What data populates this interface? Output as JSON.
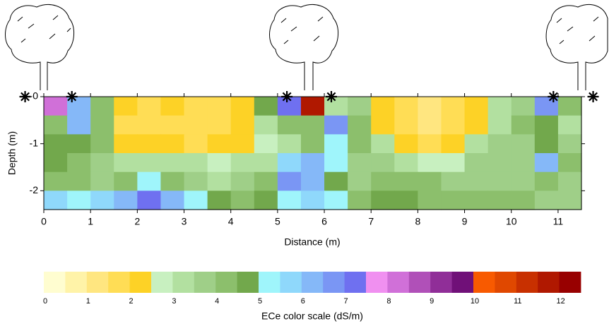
{
  "chart_data": {
    "type": "contour",
    "xlabel": "Distance (m)",
    "ylabel": "Depth (m)",
    "xlim": [
      0,
      11.5
    ],
    "ylim": [
      -2.4,
      0
    ],
    "xticks": [
      0,
      1,
      2,
      3,
      4,
      5,
      6,
      7,
      8,
      9,
      10,
      11
    ],
    "yticks": [
      {
        "value": 0,
        "label": "-0"
      },
      {
        "value": -1,
        "label": "-1"
      },
      {
        "value": -2,
        "label": "-2"
      }
    ],
    "x": [
      0.25,
      0.75,
      1.25,
      1.75,
      2.25,
      2.75,
      3.25,
      3.75,
      4.25,
      4.75,
      5.25,
      5.75,
      6.25,
      6.75,
      7.25,
      7.75,
      8.25,
      8.75,
      9.25,
      9.75,
      10.25,
      10.75,
      11.25
    ],
    "y": [
      -0.2,
      -0.6,
      -1.0,
      -1.4,
      -1.8,
      -2.2
    ],
    "z": [
      [
        8,
        6,
        4,
        2,
        1.5,
        2,
        1.5,
        1.5,
        2,
        4.5,
        7,
        11.5,
        3,
        3.5,
        2,
        1.5,
        1,
        1.5,
        2,
        3,
        3.5,
        6.5,
        4
      ],
      [
        4,
        6,
        4,
        1.5,
        1.5,
        1.5,
        1.5,
        1.5,
        2,
        3,
        4,
        4,
        6.5,
        4,
        2,
        1.5,
        1,
        1.5,
        2,
        3,
        4,
        4.5,
        3
      ],
      [
        4.5,
        4.5,
        4,
        2,
        2,
        2,
        1.5,
        2,
        2,
        2.5,
        3,
        4,
        5,
        4,
        3,
        2,
        1.5,
        2,
        3,
        3.5,
        3.5,
        4.5,
        3.5
      ],
      [
        4.5,
        4,
        3.5,
        3,
        3,
        3,
        3,
        2.5,
        3,
        3,
        5.5,
        6,
        5,
        3.5,
        3.5,
        3,
        2.5,
        2.5,
        3.5,
        3.5,
        3.5,
        6,
        4
      ],
      [
        4,
        4,
        3.5,
        4,
        5,
        4,
        3.5,
        3,
        3.5,
        4,
        6.5,
        6,
        4.5,
        3.5,
        4,
        4,
        4,
        3.5,
        3.5,
        3.5,
        3.5,
        4,
        3.5
      ],
      [
        5.5,
        5,
        5.5,
        6,
        7,
        6,
        5,
        4.5,
        4,
        4.5,
        5,
        5.5,
        5,
        4,
        4.5,
        4.5,
        4,
        4,
        4,
        4,
        4,
        3.5,
        3.5
      ]
    ],
    "markers": {
      "x": [
        -0.4,
        0.6,
        5.2,
        6.15,
        10.9,
        11.75
      ],
      "y": [
        0,
        0,
        0,
        0,
        0,
        0
      ]
    },
    "colorbar": {
      "label": "ECe color scale (dS/m)",
      "levels": [
        0,
        0.5,
        1,
        1.5,
        2,
        2.5,
        3,
        3.5,
        4,
        4.5,
        5,
        5.5,
        6,
        6.5,
        7,
        7.5,
        8,
        8.5,
        9,
        9.5,
        10,
        10.5,
        11,
        11.5,
        12,
        12.5
      ],
      "colors": [
        "#fffdd0",
        "#fff3a8",
        "#ffe680",
        "#ffdd55",
        "#fdd226",
        "#c8f0c0",
        "#b2e0a0",
        "#9fcf88",
        "#8cbf6c",
        "#72a84c",
        "#9ff5fb",
        "#8fd8fb",
        "#85b8f8",
        "#7a96f4",
        "#6f70f0",
        "#f090f0",
        "#d070d8",
        "#b050b8",
        "#902e98",
        "#701078",
        "#f85a00",
        "#e04800",
        "#c83000",
        "#b01800",
        "#980000"
      ],
      "ticks": [
        0,
        1,
        2,
        3,
        4,
        5,
        6,
        7,
        8,
        9,
        10,
        11,
        12
      ]
    }
  }
}
